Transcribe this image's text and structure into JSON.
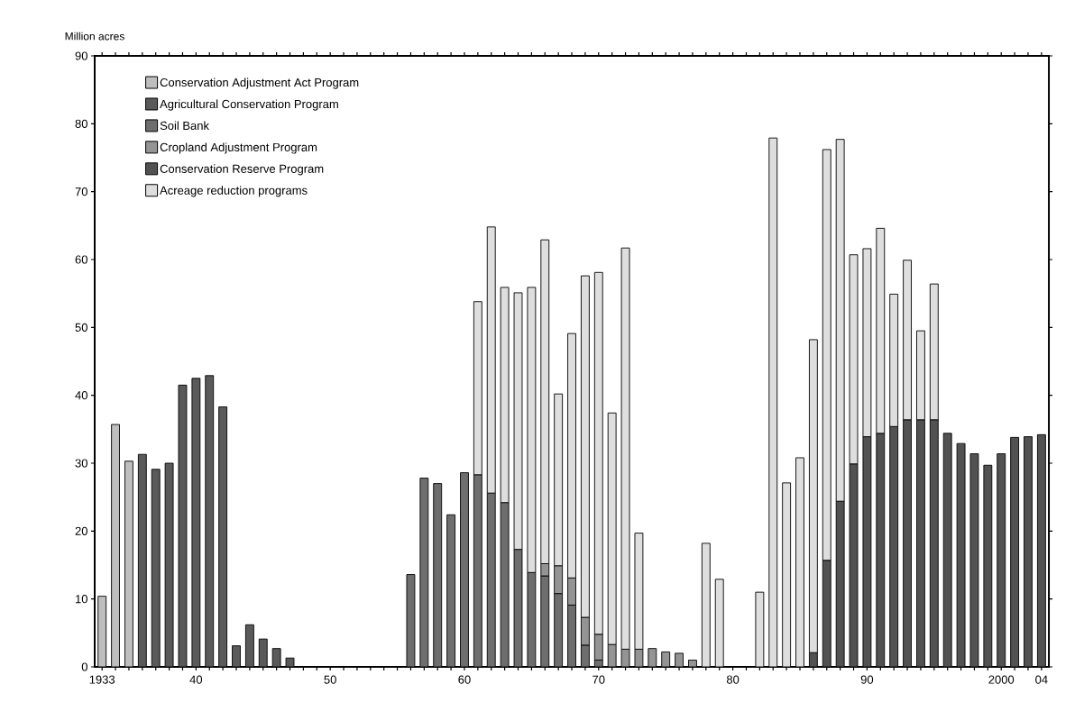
{
  "chart_data": {
    "type": "bar",
    "stacked": true,
    "ylabel": "Million acres",
    "categories": [
      "1933",
      null,
      null,
      null,
      null,
      null,
      null,
      "40",
      null,
      null,
      null,
      null,
      null,
      null,
      null,
      null,
      null,
      "50",
      null,
      null,
      null,
      null,
      null,
      null,
      null,
      null,
      null,
      "60",
      null,
      null,
      null,
      null,
      null,
      null,
      null,
      null,
      null,
      "70",
      null,
      null,
      null,
      null,
      null,
      null,
      null,
      null,
      null,
      "80",
      null,
      null,
      null,
      null,
      null,
      null,
      null,
      null,
      null,
      "90",
      null,
      null,
      null,
      null,
      null,
      null,
      null,
      null,
      null,
      "2000",
      null,
      null,
      "04"
    ],
    "ylim": [
      0,
      90
    ],
    "yticks": [
      0,
      10,
      20,
      30,
      40,
      50,
      60,
      70,
      80,
      90
    ],
    "grid": false,
    "legend": "top left",
    "series": [
      {
        "name": "Conservation Adjustment Act Program",
        "color": "#bebebe",
        "values": [
          10.4,
          35.7,
          30.3,
          null,
          null,
          null,
          null,
          null,
          null,
          null,
          null,
          null,
          null,
          null,
          null,
          null,
          null,
          null,
          null,
          null,
          null,
          null,
          null,
          null,
          null,
          null,
          null,
          null,
          null,
          null,
          null,
          null,
          null,
          null,
          null,
          null,
          null,
          null,
          null,
          null,
          null,
          null,
          null,
          null,
          null,
          null,
          null,
          null,
          null,
          null,
          null,
          null,
          null,
          null,
          null,
          null,
          null,
          null,
          null,
          null,
          null,
          null,
          null,
          null,
          null,
          null,
          null,
          null,
          null,
          null,
          null
        ]
      },
      {
        "name": "Agricultural Conservation Program",
        "color": "#5a5a5a",
        "values": [
          null,
          null,
          null,
          31.3,
          29.1,
          30.0,
          41.5,
          42.5,
          42.9,
          38.3,
          3.1,
          6.2,
          4.1,
          2.7,
          1.3,
          null,
          null,
          null,
          null,
          null,
          null,
          null,
          null,
          null,
          null,
          null,
          null,
          null,
          null,
          null,
          null,
          null,
          null,
          null,
          null,
          null,
          null,
          null,
          null,
          null,
          null,
          null,
          null,
          null,
          null,
          null,
          null,
          null,
          null,
          null,
          null,
          null,
          null,
          null,
          null,
          null,
          null,
          null,
          null,
          null,
          null,
          null,
          null,
          null,
          null,
          null,
          null,
          null,
          null,
          null,
          null
        ]
      },
      {
        "name": "Soil Bank",
        "color": "#6e6e6e",
        "values": [
          null,
          null,
          null,
          null,
          null,
          null,
          null,
          null,
          null,
          null,
          null,
          null,
          null,
          null,
          null,
          null,
          null,
          null,
          null,
          null,
          null,
          null,
          null,
          13.6,
          27.8,
          27.0,
          22.4,
          28.6,
          28.3,
          25.6,
          24.2,
          17.3,
          13.9,
          13.4,
          10.8,
          9.1,
          3.2,
          1.0,
          null,
          null,
          null,
          null,
          null,
          null,
          null,
          null,
          null,
          null,
          null,
          null,
          null,
          null,
          null,
          null,
          null,
          null,
          null,
          null,
          null,
          null,
          null,
          null,
          null,
          null,
          null,
          null,
          null,
          null,
          null,
          null,
          null
        ]
      },
      {
        "name": "Cropland Adjustment Program",
        "color": "#949494",
        "values": [
          null,
          null,
          null,
          null,
          null,
          null,
          null,
          null,
          null,
          null,
          null,
          null,
          null,
          null,
          null,
          null,
          null,
          null,
          null,
          null,
          null,
          null,
          null,
          null,
          null,
          null,
          null,
          null,
          null,
          null,
          null,
          null,
          null,
          1.8,
          4.1,
          4.0,
          4.1,
          3.8,
          3.3,
          2.6,
          2.6,
          2.7,
          2.2,
          2.0,
          1.0,
          null,
          null,
          null,
          null,
          null,
          null,
          null,
          null,
          null,
          null,
          null,
          null,
          null,
          null,
          null,
          null,
          null,
          null,
          null,
          null,
          null,
          null,
          null,
          null,
          null,
          null
        ]
      },
      {
        "name": "Conservation Reserve Program",
        "color": "#525252",
        "values": [
          null,
          null,
          null,
          null,
          null,
          null,
          null,
          null,
          null,
          null,
          null,
          null,
          null,
          null,
          null,
          null,
          null,
          null,
          null,
          null,
          null,
          null,
          null,
          null,
          null,
          null,
          null,
          null,
          null,
          null,
          null,
          null,
          null,
          null,
          null,
          null,
          null,
          null,
          null,
          null,
          null,
          null,
          null,
          null,
          null,
          null,
          null,
          null,
          null,
          null,
          null,
          null,
          null,
          2.1,
          15.7,
          24.4,
          29.9,
          33.9,
          34.4,
          35.4,
          36.4,
          36.4,
          36.4,
          34.4,
          32.9,
          31.4,
          29.7,
          31.4,
          33.8,
          33.9,
          34.2
        ]
      },
      {
        "name": "Acreage reduction programs",
        "color": "#dedede",
        "values": [
          null,
          null,
          null,
          null,
          null,
          null,
          null,
          null,
          null,
          null,
          null,
          null,
          null,
          null,
          null,
          null,
          null,
          null,
          null,
          null,
          null,
          null,
          null,
          null,
          null,
          null,
          null,
          null,
          25.5,
          39.2,
          31.7,
          37.8,
          42.0,
          47.7,
          25.3,
          36.0,
          50.3,
          53.3,
          34.1,
          59.1,
          17.1,
          null,
          null,
          null,
          null,
          18.2,
          12.9,
          null,
          null,
          11.0,
          77.9,
          27.1,
          30.8,
          46.1,
          60.5,
          53.3,
          30.8,
          27.7,
          30.2,
          19.5,
          23.5,
          13.1,
          20.0,
          null,
          null,
          null,
          null,
          null,
          null,
          null,
          null
        ]
      }
    ]
  }
}
